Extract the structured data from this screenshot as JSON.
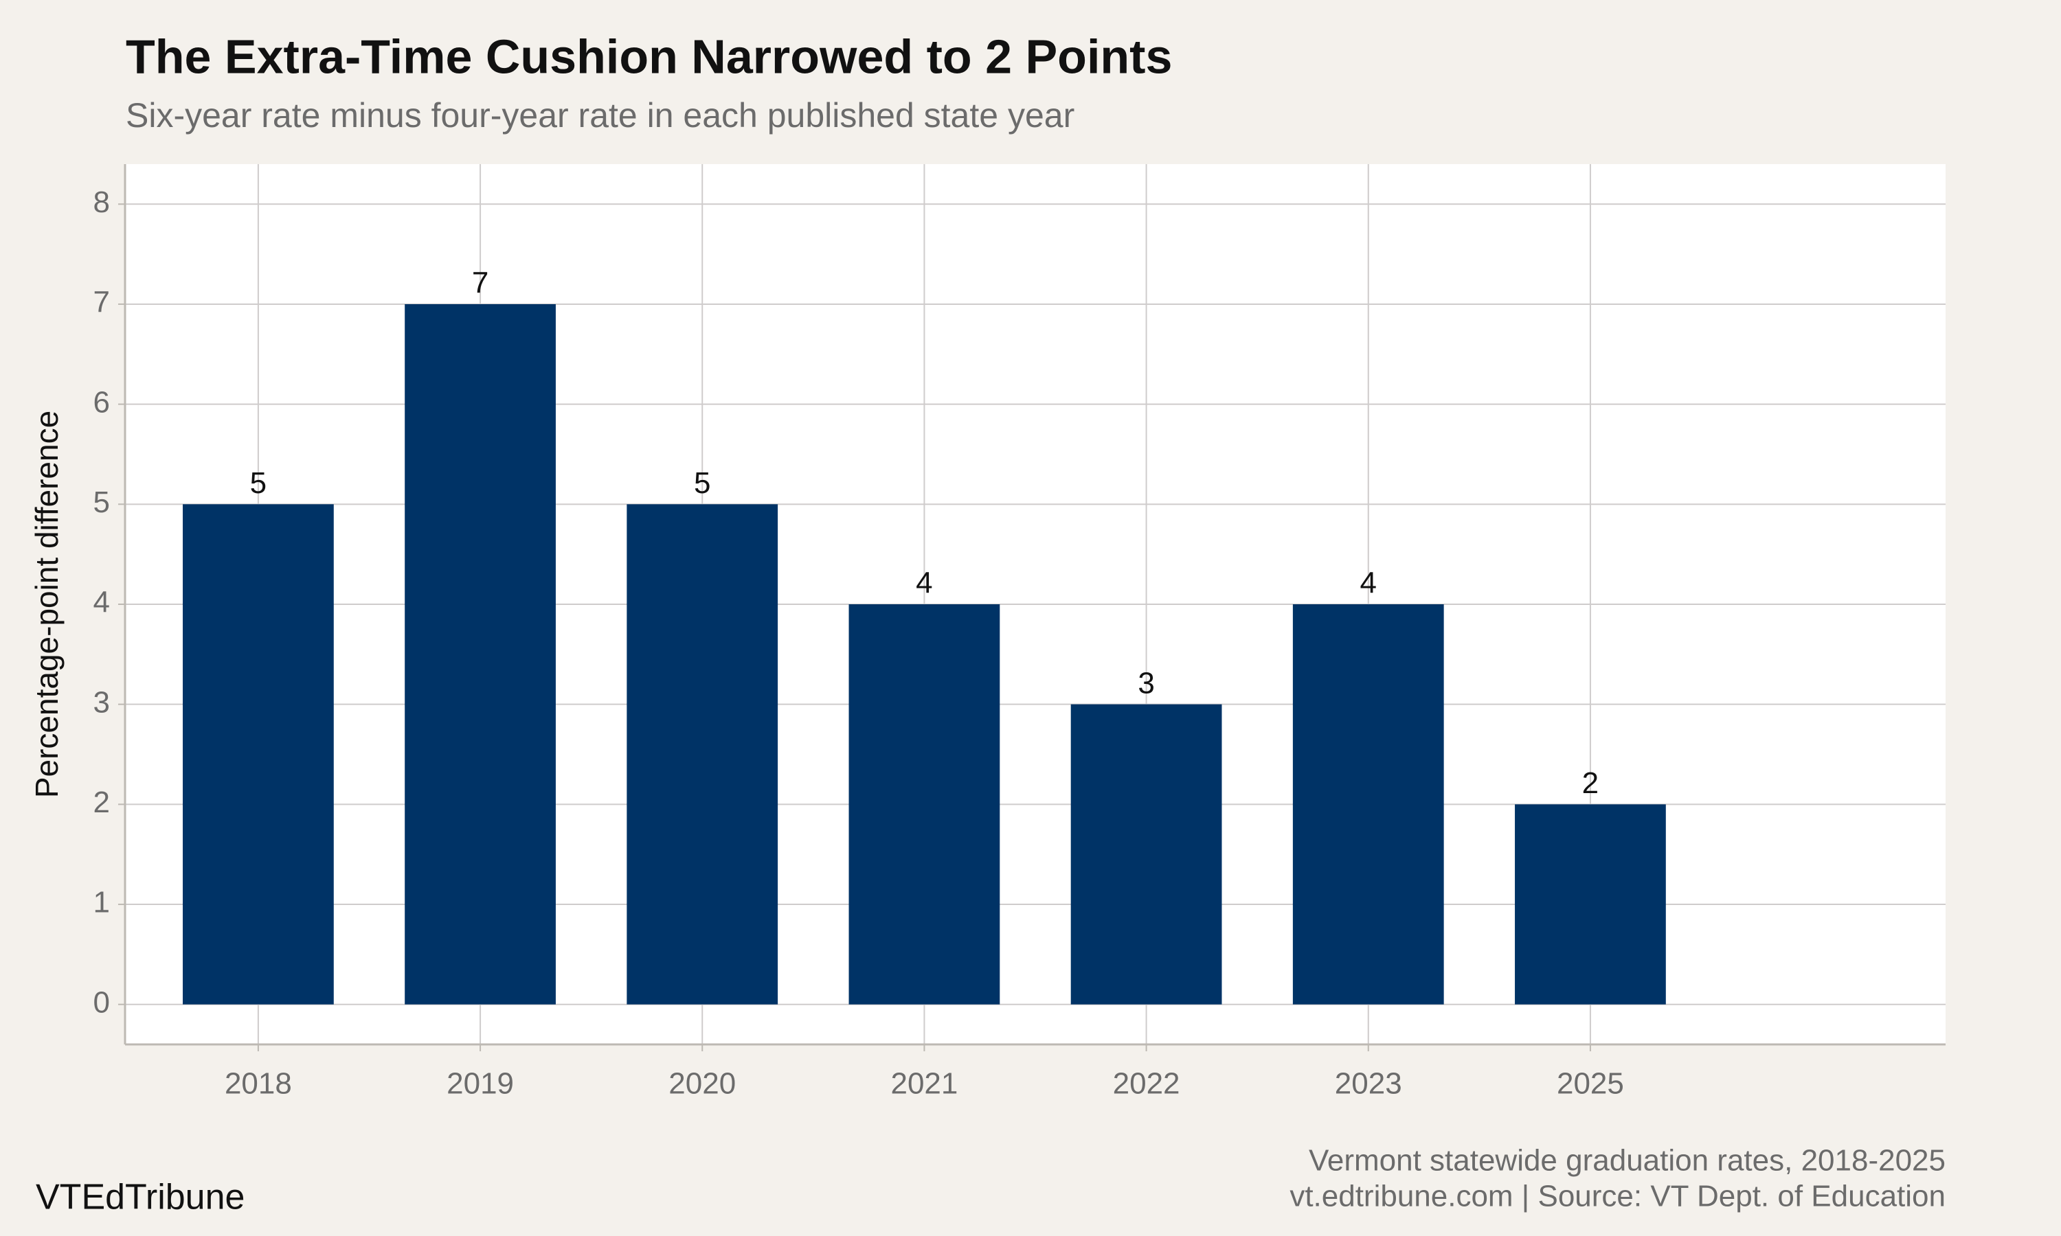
{
  "chart_data": {
    "type": "bar",
    "title": "The Extra-Time Cushion Narrowed to 2 Points",
    "subtitle": "Six-year rate minus four-year rate in each published state year",
    "y_label": "Percentage-point difference",
    "categories": [
      "2018",
      "2019",
      "2020",
      "2021",
      "2022",
      "2023",
      "2025"
    ],
    "values": [
      5,
      7,
      5,
      4,
      3,
      4,
      2
    ],
    "color": "#003366",
    "ylim": [
      -0.4,
      8.4
    ],
    "yticks": [
      0,
      1,
      2,
      3,
      4,
      5,
      6,
      7,
      8
    ],
    "grid": true,
    "caption": [
      "Vermont statewide graduation rates, 2018-2025",
      "vt.edtribune.com | Source: VT Dept. of Education"
    ],
    "brand": "VTEdTribune"
  }
}
